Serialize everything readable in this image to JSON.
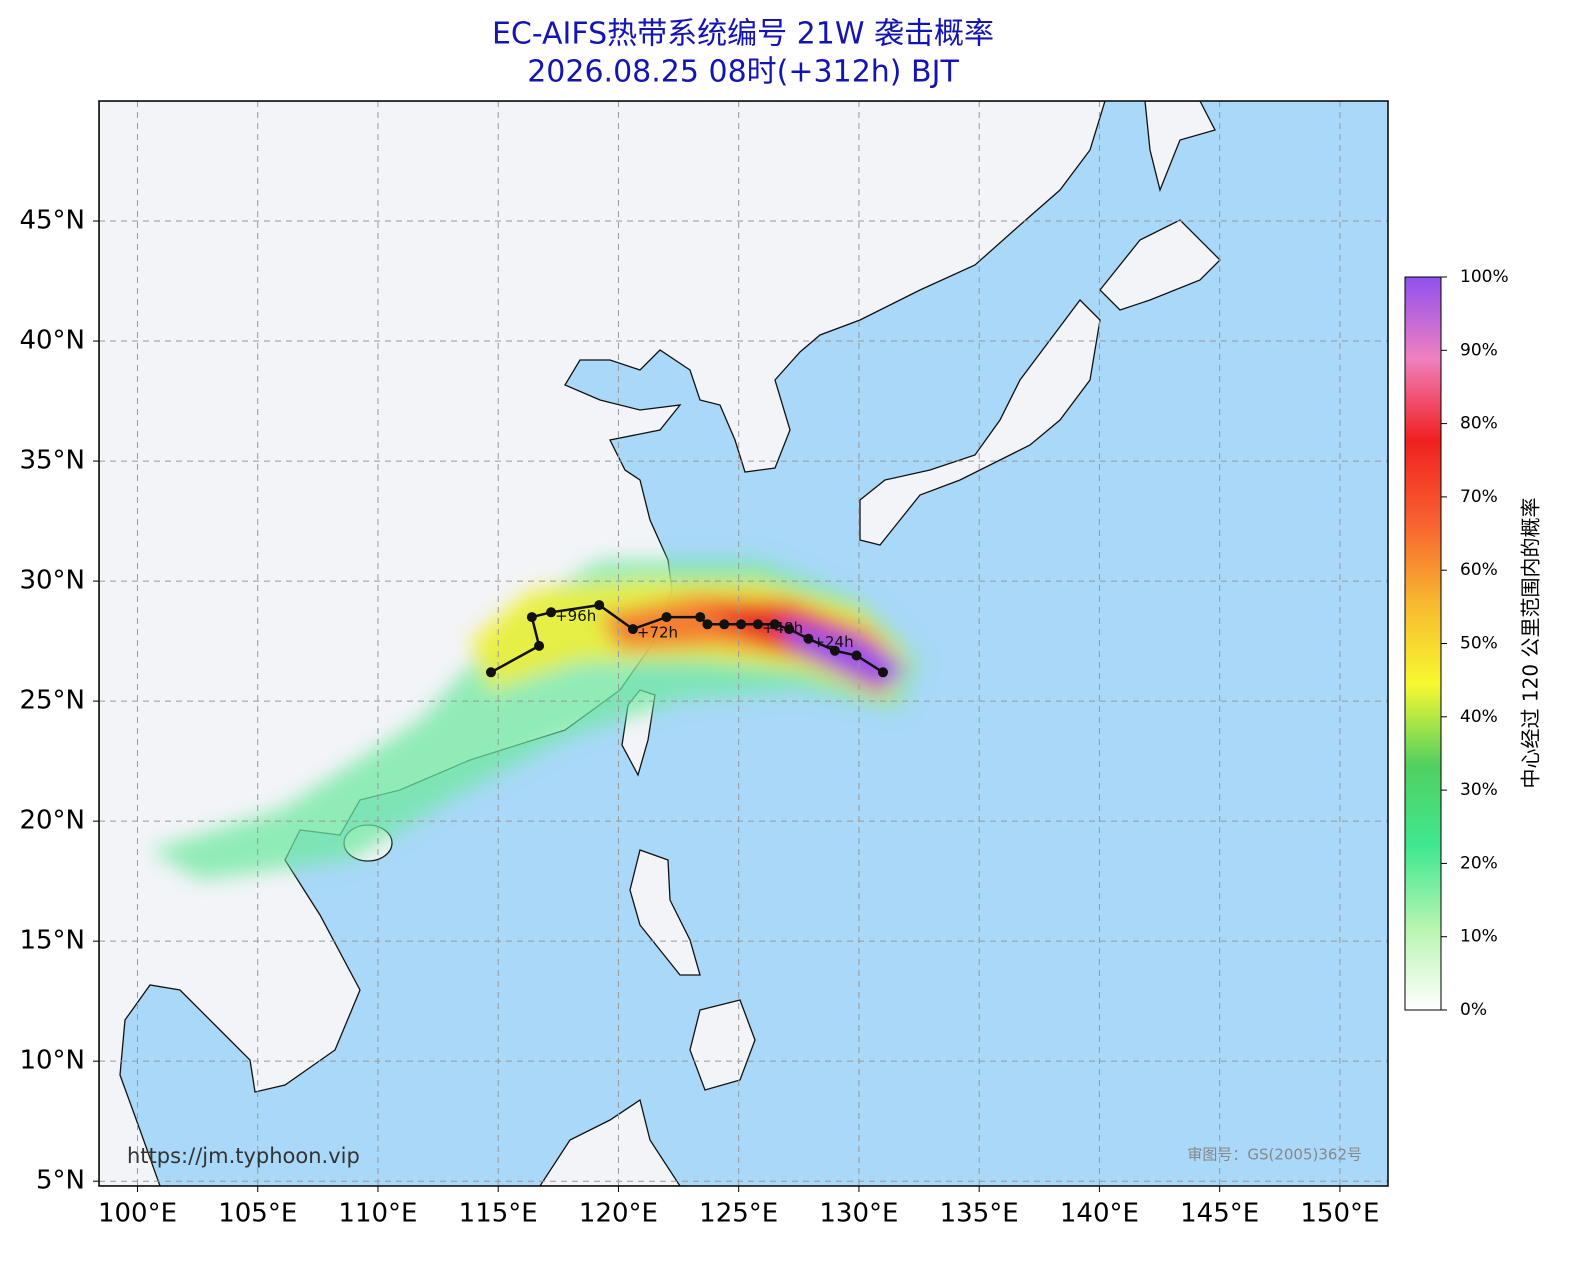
{
  "title": [
    "EC-AIFS热带系统编号 21W 袭击概率",
    "2026.08.25 08时(+312h) BJT"
  ],
  "map": {
    "xlim": [
      98.4,
      152
    ],
    "ylim": [
      4.8,
      50
    ],
    "xticks": [
      {
        "value": 100,
        "label": "100°E"
      },
      {
        "value": 105,
        "label": "105°E"
      },
      {
        "value": 110,
        "label": "110°E"
      },
      {
        "value": 115,
        "label": "115°E"
      },
      {
        "value": 120,
        "label": "120°E"
      },
      {
        "value": 125,
        "label": "125°E"
      },
      {
        "value": 130,
        "label": "130°E"
      },
      {
        "value": 135,
        "label": "135°E"
      },
      {
        "value": 140,
        "label": "140°E"
      },
      {
        "value": 145,
        "label": "145°E"
      },
      {
        "value": 150,
        "label": "150°E"
      }
    ],
    "yticks": [
      {
        "value": 5,
        "label": "5°N"
      },
      {
        "value": 10,
        "label": "10°N"
      },
      {
        "value": 15,
        "label": "15°N"
      },
      {
        "value": 20,
        "label": "20°N"
      },
      {
        "value": 25,
        "label": "25°N"
      },
      {
        "value": 30,
        "label": "30°N"
      },
      {
        "value": 35,
        "label": "35°N"
      },
      {
        "value": 40,
        "label": "40°N"
      },
      {
        "value": 45,
        "label": "45°N"
      }
    ],
    "grid": true,
    "track": {
      "color": "#111111",
      "lon": [
        131.0,
        129.9,
        129.0,
        127.9,
        127.1,
        126.5,
        125.8,
        125.1,
        124.4,
        123.7,
        123.4,
        122.0,
        120.6,
        119.2,
        117.2,
        116.4,
        116.7,
        114.7
      ],
      "lat": [
        26.2,
        26.9,
        27.1,
        27.6,
        28.0,
        28.2,
        28.2,
        28.2,
        28.2,
        28.2,
        28.5,
        28.5,
        28.0,
        29.0,
        28.7,
        28.5,
        27.3,
        26.2
      ]
    },
    "annotations": [
      {
        "text": "+24h",
        "index": 3
      },
      {
        "text": "+48h",
        "index": 6
      },
      {
        "text": "+72h",
        "index": 12
      },
      {
        "text": "+96h",
        "index": 14
      }
    ]
  },
  "colorbar": {
    "label": "中心经过 120 公里范围内的概率",
    "lim": [
      0,
      100
    ],
    "colors": [
      "#ffffff",
      "#b8f5b0",
      "#40e890",
      "#50d060",
      "#f8f830",
      "#f8b830",
      "#f86030",
      "#f02020",
      "#f080c0",
      "#9050f0"
    ],
    "ticks": [
      {
        "value": 0,
        "label": "0%"
      },
      {
        "value": 10,
        "label": "10%"
      },
      {
        "value": 20,
        "label": "20%"
      },
      {
        "value": 30,
        "label": "30%"
      },
      {
        "value": 40,
        "label": "40%"
      },
      {
        "value": 50,
        "label": "50%"
      },
      {
        "value": 60,
        "label": "60%"
      },
      {
        "value": 70,
        "label": "70%"
      },
      {
        "value": 80,
        "label": "80%"
      },
      {
        "value": 90,
        "label": "90%"
      },
      {
        "value": 100,
        "label": "100%"
      }
    ]
  },
  "watermarks": [
    "https://jm.typhoon.vip",
    "审图号：GS(2005)362号"
  ]
}
